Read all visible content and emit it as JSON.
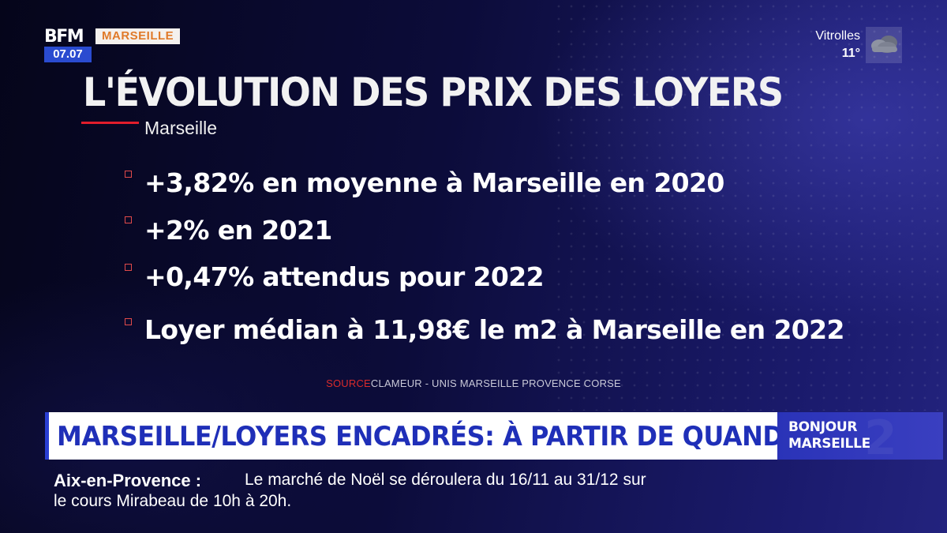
{
  "channel": {
    "logo_text": "BFM",
    "time": "07.07",
    "city": "MARSEILLE"
  },
  "weather": {
    "city": "Vitrolles",
    "temperature": "11°",
    "icon": "cloud-icon"
  },
  "slide": {
    "title": "L'ÉVOLUTION DES PRIX DES LOYERS",
    "subtitle": "Marseille",
    "bullets": [
      "+3,82% en moyenne à Marseille en 2020",
      "+2% en 2021",
      "+0,47% attendus pour 2022",
      "Loyer médian à 11,98€ le m2 à Marseille en 2022"
    ],
    "source_label": "SOURCE",
    "source_text": "CLAMEUR - UNIS MARSEILLE PROVENCE CORSE"
  },
  "headline": {
    "text": "MARSEILLE/LOYERS ENCADRÉS: À PARTIR DE QUAND ?",
    "show_line1": "BONJOUR",
    "show_line2": "MARSEILLE"
  },
  "ticker": {
    "place": "Aix-en-Provence :",
    "text_line1": "Le marché de Noël se déroulera du 16/11 au 31/12 sur",
    "text_line2": "le cours Mirabeau de 10h à 20h."
  },
  "colors": {
    "accent_red": "#e11d2b",
    "brand_blue": "#2a3fd2",
    "city_orange": "#e07a2a"
  }
}
